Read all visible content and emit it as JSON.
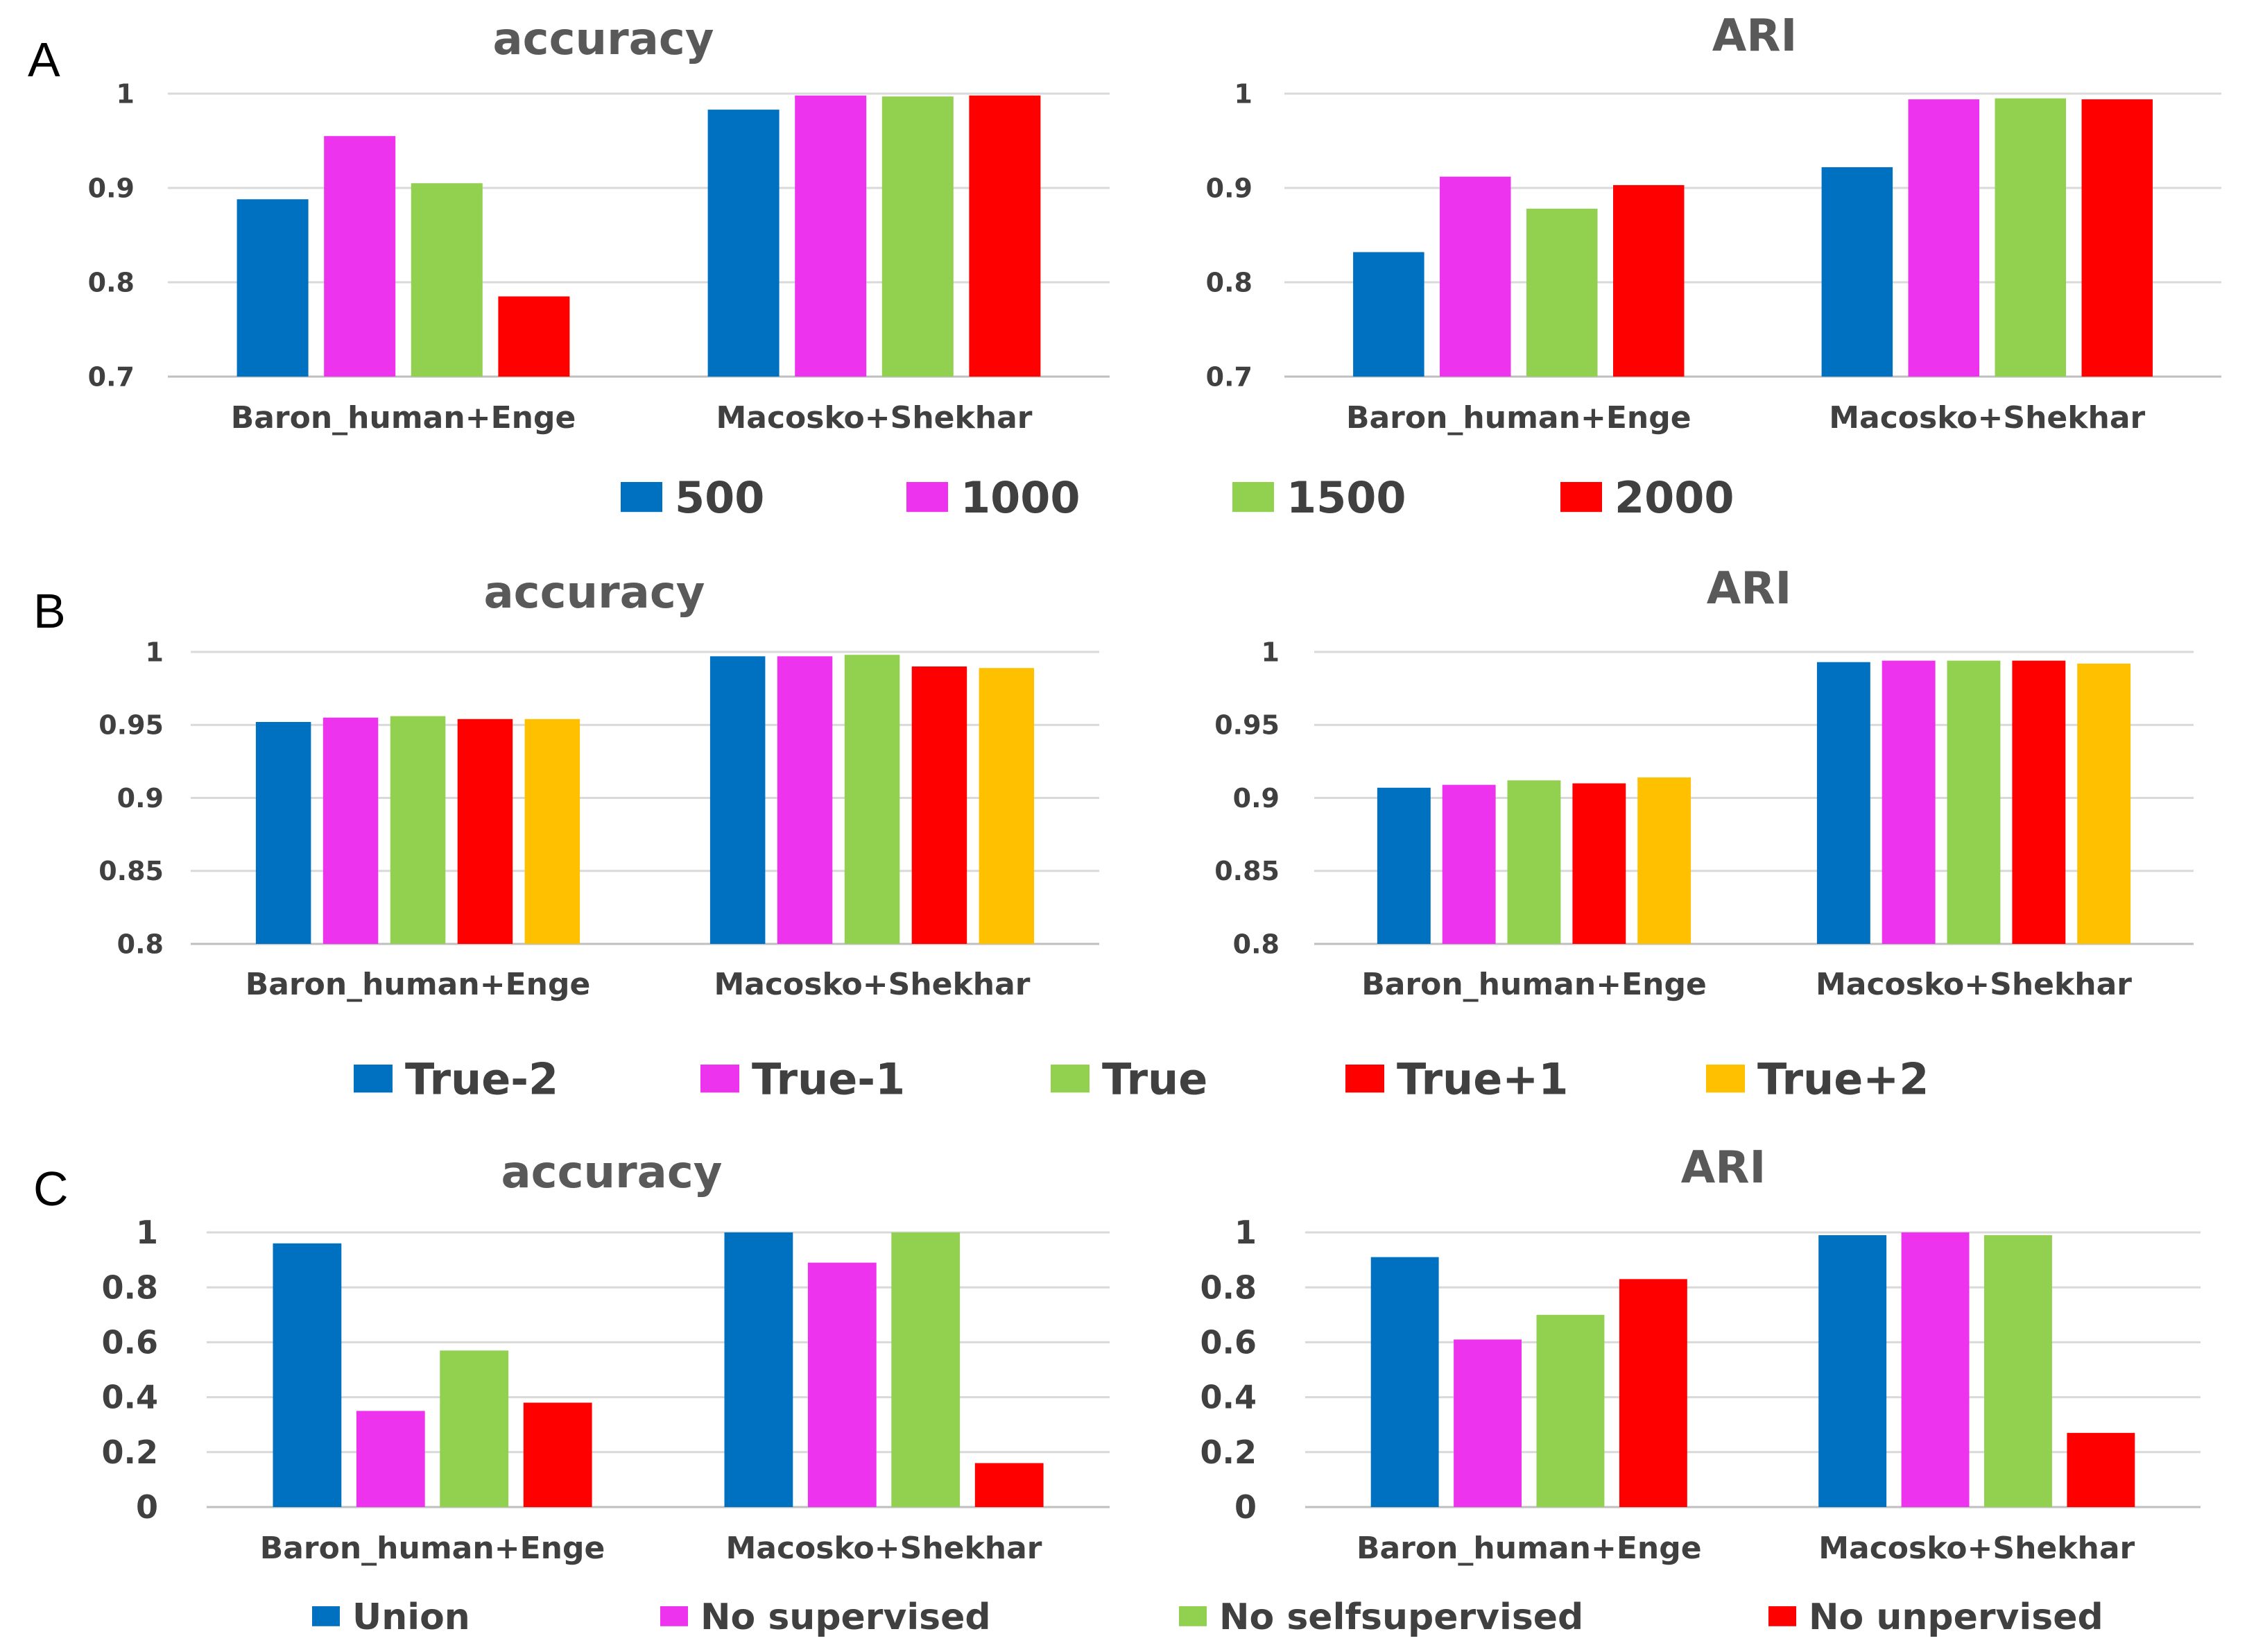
{
  "colors": {
    "blue": "#0070C0",
    "magenta": "#EE33EE",
    "green": "#92D050",
    "red": "#FF0000",
    "orange": "#FFC000"
  },
  "panels": [
    {
      "letter": "A",
      "legend": [
        "500",
        "1000",
        "1500",
        "2000"
      ]
    },
    {
      "letter": "B",
      "legend": [
        "True-2",
        "True-1",
        "True",
        "True+1",
        "True+2"
      ]
    },
    {
      "letter": "C",
      "legend": [
        "Union",
        "No supervised",
        "No selfsupervised",
        "No unpervised"
      ]
    }
  ],
  "chart_data": [
    {
      "type": "bar",
      "panel": "A",
      "title": "accuracy",
      "categories": [
        "Baron_human+Enge",
        "Macosko+Shekhar"
      ],
      "ylim": [
        0.7,
        1
      ],
      "yticks": [
        "0.7",
        "0.8",
        "0.9",
        "1"
      ],
      "series": [
        {
          "name": "500",
          "values": [
            0.888,
            0.983
          ]
        },
        {
          "name": "1000",
          "values": [
            0.955,
            0.998
          ]
        },
        {
          "name": "1500",
          "values": [
            0.905,
            0.997
          ]
        },
        {
          "name": "2000",
          "values": [
            0.785,
            0.998
          ]
        }
      ]
    },
    {
      "type": "bar",
      "panel": "A",
      "title": "ARI",
      "categories": [
        "Baron_human+Enge",
        "Macosko+Shekhar"
      ],
      "ylim": [
        0.7,
        1
      ],
      "yticks": [
        "0.7",
        "0.8",
        "0.9",
        "1"
      ],
      "series": [
        {
          "name": "500",
          "values": [
            0.832,
            0.922
          ]
        },
        {
          "name": "1000",
          "values": [
            0.912,
            0.994
          ]
        },
        {
          "name": "1500",
          "values": [
            0.878,
            0.995
          ]
        },
        {
          "name": "2000",
          "values": [
            0.903,
            0.994
          ]
        }
      ]
    },
    {
      "type": "bar",
      "panel": "B",
      "title": "accuracy",
      "categories": [
        "Baron_human+Enge",
        "Macosko+Shekhar"
      ],
      "ylim": [
        0.8,
        1
      ],
      "yticks": [
        "0.8",
        "0.85",
        "0.9",
        "0.95",
        "1"
      ],
      "series": [
        {
          "name": "True-2",
          "values": [
            0.952,
            0.997
          ]
        },
        {
          "name": "True-1",
          "values": [
            0.955,
            0.997
          ]
        },
        {
          "name": "True",
          "values": [
            0.956,
            0.998
          ]
        },
        {
          "name": "True+1",
          "values": [
            0.954,
            0.99
          ]
        },
        {
          "name": "True+2",
          "values": [
            0.954,
            0.989
          ]
        }
      ]
    },
    {
      "type": "bar",
      "panel": "B",
      "title": "ARI",
      "categories": [
        "Baron_human+Enge",
        "Macosko+Shekhar"
      ],
      "ylim": [
        0.8,
        1
      ],
      "yticks": [
        "0.8",
        "0.85",
        "0.9",
        "0.95",
        "1"
      ],
      "series": [
        {
          "name": "True-2",
          "values": [
            0.907,
            0.993
          ]
        },
        {
          "name": "True-1",
          "values": [
            0.909,
            0.994
          ]
        },
        {
          "name": "True",
          "values": [
            0.912,
            0.994
          ]
        },
        {
          "name": "True+1",
          "values": [
            0.91,
            0.994
          ]
        },
        {
          "name": "True+2",
          "values": [
            0.914,
            0.992
          ]
        }
      ]
    },
    {
      "type": "bar",
      "panel": "C",
      "title": "accuracy",
      "categories": [
        "Baron_human+Enge",
        "Macosko+Shekhar"
      ],
      "ylim": [
        0,
        1
      ],
      "yticks": [
        "0",
        "0.2",
        "0.4",
        "0.6",
        "0.8",
        "1"
      ],
      "series": [
        {
          "name": "Union",
          "values": [
            0.96,
            1.0
          ]
        },
        {
          "name": "No supervised",
          "values": [
            0.35,
            0.89
          ]
        },
        {
          "name": "No selfsupervised",
          "values": [
            0.57,
            1.0
          ]
        },
        {
          "name": "No unpervised",
          "values": [
            0.38,
            0.16
          ]
        }
      ]
    },
    {
      "type": "bar",
      "panel": "C",
      "title": "ARI",
      "categories": [
        "Baron_human+Enge",
        "Macosko+Shekhar"
      ],
      "ylim": [
        0,
        1
      ],
      "yticks": [
        "0",
        "0.2",
        "0.4",
        "0.6",
        "0.8",
        "1"
      ],
      "series": [
        {
          "name": "Union",
          "values": [
            0.91,
            0.99
          ]
        },
        {
          "name": "No supervised",
          "values": [
            0.61,
            1.0
          ]
        },
        {
          "name": "No selfsupervised",
          "values": [
            0.7,
            0.99
          ]
        },
        {
          "name": "No unpervised",
          "values": [
            0.83,
            0.27
          ]
        }
      ]
    }
  ]
}
